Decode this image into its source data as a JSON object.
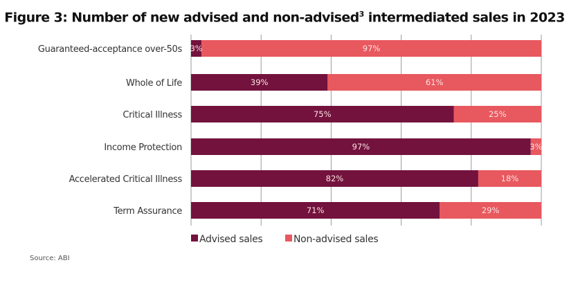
{
  "chart_data": {
    "type": "bar",
    "orientation": "horizontal",
    "stacked": true,
    "title_main": "Figure 3: Number of new advised and non-advised",
    "title_sup": "3",
    "title_end": " intermediated sales in 2023",
    "categories": [
      "Guaranteed-acceptance over-50s",
      "Whole of Life",
      "Critical Illness",
      "Income Protection",
      "Accelerated Critical Illness",
      "Term Assurance"
    ],
    "series": [
      {
        "name": "Advised sales",
        "color": "#73123d",
        "values": [
          3,
          39,
          75,
          97,
          82,
          71
        ]
      },
      {
        "name": "Non-advised sales",
        "color": "#e8585f",
        "values": [
          97,
          61,
          25,
          3,
          18,
          29
        ]
      }
    ],
    "value_labels": [
      [
        "3%",
        "39%",
        "75%",
        "97%",
        "82%",
        "71%"
      ],
      [
        "97%",
        "61%",
        "25%",
        "3%",
        "18%",
        "29%"
      ]
    ],
    "xlim": [
      0,
      100
    ],
    "x_ticks": [
      0,
      20,
      40,
      60,
      80,
      100
    ],
    "x_tick_labels_shown": false,
    "grid": true,
    "legend": "bottom-left",
    "xlabel": "",
    "ylabel": "",
    "source": "Source: ABI"
  }
}
